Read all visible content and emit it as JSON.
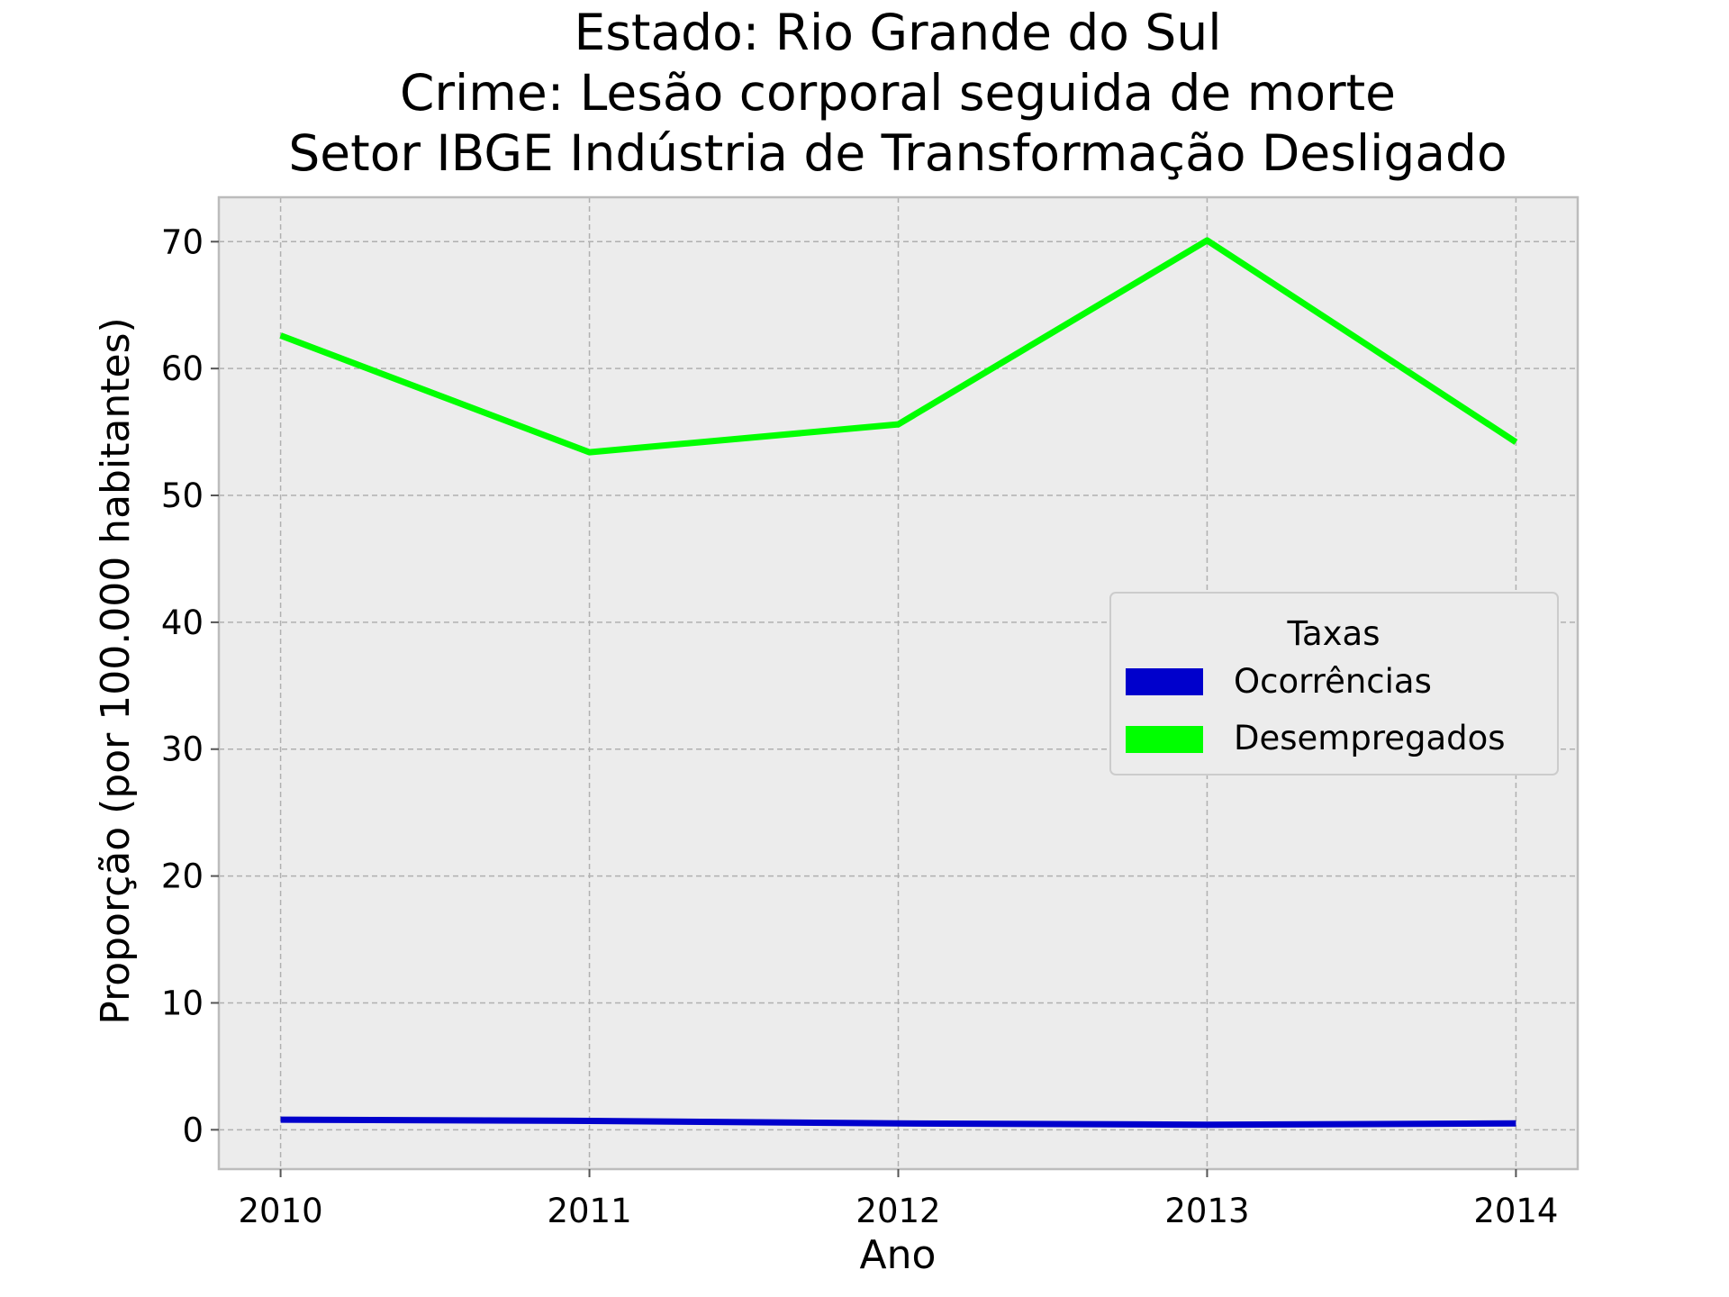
{
  "chart_data": {
    "type": "line",
    "title_lines": [
      "Estado: Rio Grande do Sul",
      "Crime: Lesão corporal seguida de morte",
      "Setor IBGE  Indústria de Transformação   Desligado"
    ],
    "xlabel": "Ano",
    "ylabel": "Proporção (por 100.000 habitantes)",
    "x": [
      2010,
      2011,
      2012,
      2013,
      2014
    ],
    "x_tick_labels": [
      "2010",
      "2011",
      "2012",
      "2013",
      "2014"
    ],
    "xlim": [
      2009.8,
      2014.2
    ],
    "y_ticks": [
      0,
      10,
      20,
      30,
      40,
      50,
      60,
      70
    ],
    "y_tick_labels": [
      "0",
      "10",
      "20",
      "30",
      "40",
      "50",
      "60",
      "70"
    ],
    "ylim": [
      -3.1,
      73.5
    ],
    "grid": true,
    "grid_style": "dashed",
    "background": "#ececec",
    "legend": {
      "title": "Taxas",
      "placement": "center-right",
      "entries": [
        "Ocorrências",
        "Desempregados"
      ]
    },
    "series": [
      {
        "name": "Ocorrências",
        "color": "#0000cc",
        "values": [
          0.8,
          0.7,
          0.5,
          0.4,
          0.5
        ]
      },
      {
        "name": "Desempregados",
        "color": "#00ff00",
        "values": [
          62.6,
          53.4,
          55.6,
          70.1,
          54.2
        ]
      }
    ]
  }
}
